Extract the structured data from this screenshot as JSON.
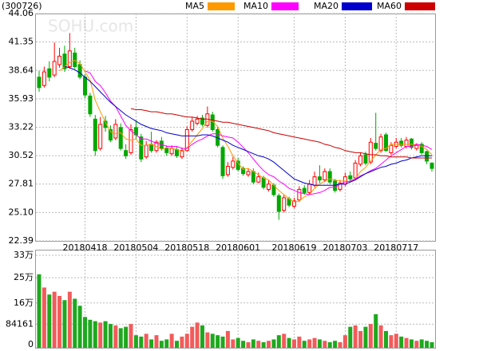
{
  "chart_data": {
    "type": "candlestick",
    "code": "(300726)",
    "watermark": "SOHU.com",
    "grid": true,
    "up_color": "#ff0000",
    "down_color": "#00a800",
    "categories": [
      null,
      null,
      null,
      null,
      null,
      null,
      null,
      null,
      null,
      "20180418",
      null,
      null,
      null,
      null,
      null,
      null,
      null,
      null,
      null,
      "20180504",
      null,
      null,
      null,
      null,
      null,
      null,
      null,
      null,
      null,
      "20180518",
      null,
      null,
      null,
      null,
      null,
      null,
      null,
      null,
      null,
      "20180601",
      null,
      null,
      null,
      null,
      null,
      null,
      null,
      null,
      null,
      null,
      "20180619",
      null,
      null,
      null,
      null,
      null,
      null,
      null,
      null,
      null,
      "20180703",
      null,
      null,
      null,
      null,
      null,
      null,
      null,
      null,
      null,
      "20180717",
      null,
      null,
      null,
      null,
      null,
      null,
      null
    ],
    "open": [
      38.0,
      37.2,
      38.8,
      38.2,
      39.2,
      40.2,
      39.0,
      40.3,
      39.2,
      38.0,
      36.2,
      34.0,
      31.2,
      33.8,
      33.0,
      32.2,
      33.2,
      31.0,
      30.8,
      33.2,
      32.3,
      30.4,
      31.6,
      31.0,
      31.9,
      31.2,
      30.7,
      31.1,
      30.4,
      31.0,
      33.0,
      33.6,
      34.1,
      33.4,
      34.4,
      33.0,
      31.3,
      28.7,
      29.4,
      30.0,
      29.3,
      28.7,
      29.0,
      28.0,
      28.4,
      27.3,
      27.7,
      26.7,
      25.3,
      26.4,
      25.7,
      26.3,
      27.4,
      27.0,
      27.7,
      28.5,
      28.2,
      29.0,
      28.1,
      27.3,
      27.8,
      28.6,
      28.4,
      29.7,
      30.6,
      29.9,
      31.7,
      31.0,
      32.5,
      30.8,
      31.4,
      31.9,
      31.4,
      32.1,
      31.2,
      31.6,
      30.9,
      29.8
    ],
    "high": [
      38.6,
      39.0,
      39.5,
      41.3,
      40.8,
      41.0,
      42.2,
      40.8,
      39.6,
      38.3,
      36.5,
      34.4,
      34.2,
      34.3,
      33.4,
      34.0,
      33.6,
      31.6,
      33.5,
      33.9,
      32.6,
      31.9,
      32.8,
      32.0,
      32.3,
      31.5,
      31.5,
      31.4,
      31.3,
      33.3,
      34.2,
      34.3,
      34.4,
      35.2,
      34.7,
      33.3,
      31.5,
      29.9,
      30.4,
      30.3,
      29.5,
      29.3,
      29.3,
      28.9,
      28.6,
      28.2,
      27.9,
      26.9,
      26.8,
      26.6,
      26.5,
      27.6,
      27.7,
      28.2,
      29.0,
      29.6,
      29.3,
      29.3,
      28.3,
      28.2,
      28.9,
      29.0,
      30.1,
      30.8,
      30.9,
      32.2,
      34.6,
      32.6,
      32.7,
      31.8,
      32.2,
      32.2,
      32.3,
      32.2,
      31.7,
      31.8,
      31.0,
      29.9
    ],
    "low": [
      36.6,
      37.0,
      37.6,
      38.0,
      38.9,
      38.5,
      38.8,
      38.8,
      37.8,
      36.0,
      34.2,
      30.5,
      31.0,
      32.8,
      31.8,
      32.0,
      31.0,
      30.2,
      30.6,
      32.1,
      29.9,
      30.2,
      30.8,
      30.8,
      31.0,
      30.5,
      30.5,
      30.3,
      30.2,
      30.9,
      32.8,
      33.4,
      33.3,
      33.2,
      32.8,
      31.3,
      28.3,
      28.5,
      29.2,
      29.0,
      28.6,
      28.5,
      27.8,
      27.9,
      27.3,
      27.1,
      26.6,
      24.4,
      25.1,
      25.6,
      25.5,
      26.1,
      26.8,
      26.8,
      27.5,
      27.9,
      28.0,
      27.8,
      27.0,
      27.1,
      27.6,
      28.1,
      28.2,
      29.5,
      29.6,
      29.7,
      31.0,
      30.8,
      30.9,
      30.6,
      31.2,
      31.3,
      31.2,
      31.1,
      31.0,
      30.6,
      29.7,
      29.0
    ],
    "close": [
      37.0,
      38.5,
      38.0,
      39.5,
      40.0,
      38.8,
      40.5,
      39.0,
      38.0,
      36.3,
      34.5,
      31.0,
      33.5,
      33.2,
      32.0,
      33.5,
      31.2,
      30.5,
      33.0,
      32.5,
      30.2,
      31.5,
      31.0,
      31.8,
      31.2,
      30.8,
      31.2,
      30.5,
      31.0,
      33.0,
      33.8,
      34.0,
      33.5,
      34.5,
      33.0,
      31.5,
      28.6,
      29.5,
      30.0,
      29.2,
      28.8,
      29.0,
      28.0,
      28.5,
      27.5,
      27.8,
      26.8,
      25.2,
      26.5,
      25.8,
      26.2,
      27.3,
      27.0,
      27.8,
      28.5,
      28.2,
      29.0,
      28.0,
      27.2,
      27.9,
      28.5,
      28.3,
      29.8,
      30.5,
      29.8,
      31.8,
      31.2,
      32.3,
      31.0,
      31.5,
      31.8,
      31.5,
      32.0,
      31.3,
      31.5,
      30.8,
      30.0,
      29.3
    ],
    "ylim": [
      22.39,
      44.06
    ],
    "yticks": [
      44.06,
      41.35,
      38.64,
      35.93,
      33.22,
      30.52,
      27.81,
      {
        "value": 25.1,
        "label": "25.10"
      },
      22.39
    ],
    "series": [
      {
        "name": "MA5",
        "color": "#ff9900",
        "values": [
          null,
          null,
          null,
          null,
          38.6,
          39.0,
          39.4,
          39.6,
          39.3,
          38.5,
          37.7,
          35.8,
          34.7,
          33.7,
          32.8,
          32.6,
          32.7,
          32.1,
          32.0,
          32.1,
          31.5,
          31.5,
          31.6,
          31.4,
          31.1,
          31.3,
          31.2,
          31.1,
          30.9,
          31.3,
          31.9,
          32.5,
          33.1,
          33.8,
          33.8,
          33.3,
          32.2,
          31.4,
          30.5,
          29.8,
          29.2,
          29.3,
          29.0,
          28.7,
          28.4,
          28.2,
          27.7,
          27.2,
          26.8,
          26.4,
          26.1,
          26.2,
          26.6,
          26.8,
          27.4,
          27.8,
          28.1,
          28.3,
          28.2,
          28.1,
          28.1,
          28.0,
          28.3,
          29.0,
          29.4,
          30.0,
          30.6,
          31.1,
          31.2,
          31.6,
          31.6,
          31.6,
          31.6,
          31.6,
          31.6,
          31.4,
          31.1,
          30.6
        ]
      },
      {
        "name": "MA10",
        "color": "#ff00ff",
        "values": [
          null,
          null,
          null,
          null,
          null,
          null,
          null,
          null,
          null,
          38.6,
          38.4,
          37.6,
          37.2,
          36.5,
          35.7,
          35.2,
          34.3,
          33.4,
          32.9,
          32.5,
          32.1,
          32.1,
          31.9,
          31.7,
          31.6,
          31.4,
          31.4,
          31.4,
          31.2,
          31.2,
          31.6,
          31.9,
          32.1,
          32.4,
          32.6,
          32.6,
          32.4,
          32.3,
          32.2,
          31.8,
          31.3,
          30.8,
          30.2,
          29.6,
          29.1,
          28.7,
          28.5,
          28.1,
          27.8,
          27.4,
          27.2,
          27.0,
          26.9,
          26.8,
          26.9,
          27.0,
          27.2,
          27.5,
          27.5,
          27.8,
          28.0,
          28.1,
          28.3,
          28.6,
          28.8,
          29.1,
          29.3,
          29.7,
          30.1,
          30.5,
          30.8,
          31.1,
          31.4,
          31.4,
          31.6,
          31.5,
          31.4,
          31.1
        ]
      },
      {
        "name": "MA20",
        "color": "#0000cc",
        "values": [
          null,
          null,
          null,
          null,
          null,
          39.0,
          38.9,
          38.7,
          38.4,
          38.0,
          37.6,
          37.1,
          36.6,
          36.1,
          35.6,
          35.2,
          34.8,
          34.4,
          34.1,
          33.8,
          33.5,
          33.3,
          33.1,
          33.0,
          32.9,
          32.7,
          32.6,
          32.5,
          32.4,
          32.4,
          32.4,
          32.4,
          32.5,
          32.5,
          32.4,
          32.2,
          32.0,
          31.8,
          31.5,
          31.3,
          31.1,
          30.9,
          30.7,
          30.5,
          30.4,
          30.2,
          29.9,
          29.5,
          29.1,
          28.7,
          28.3,
          28.1,
          27.9,
          27.8,
          27.7,
          27.7,
          27.7,
          27.7,
          27.7,
          27.8,
          27.8,
          28.0,
          28.2,
          28.5,
          28.8,
          29.0,
          29.2,
          29.4,
          29.5,
          29.7,
          29.8,
          30.0,
          30.1,
          30.3,
          30.4,
          30.5,
          30.5,
          30.5
        ]
      },
      {
        "name": "MA60",
        "color": "#cc0000",
        "values": [
          null,
          null,
          null,
          null,
          null,
          null,
          null,
          null,
          null,
          null,
          null,
          null,
          null,
          null,
          null,
          null,
          null,
          null,
          35.0,
          34.9,
          34.9,
          34.8,
          34.7,
          34.7,
          34.6,
          34.5,
          34.5,
          34.4,
          34.3,
          34.2,
          34.2,
          34.1,
          34.0,
          34.0,
          33.9,
          33.8,
          33.7,
          33.7,
          33.6,
          33.5,
          33.4,
          33.3,
          33.2,
          33.1,
          33.0,
          32.9,
          32.7,
          32.6,
          32.5,
          32.4,
          32.3,
          32.2,
          32.1,
          32.0,
          31.9,
          31.8,
          31.6,
          31.5,
          31.3,
          31.2,
          31.0,
          30.9,
          30.8,
          30.8,
          30.7,
          30.6,
          30.6,
          30.5,
          30.5,
          30.4,
          30.4,
          30.4,
          30.4,
          30.3,
          30.3,
          30.3,
          30.3,
          30.3
        ]
      }
    ],
    "volume": {
      "values": [
        262000,
        215000,
        190000,
        200000,
        185000,
        170000,
        200000,
        175000,
        150000,
        110000,
        100000,
        95000,
        90000,
        95000,
        85000,
        80000,
        70000,
        75000,
        85000,
        45000,
        40000,
        50000,
        30000,
        45000,
        25000,
        30000,
        50000,
        25000,
        40000,
        50000,
        75000,
        90000,
        80000,
        55000,
        50000,
        45000,
        40000,
        60000,
        30000,
        35000,
        25000,
        20000,
        30000,
        25000,
        20000,
        25000,
        30000,
        45000,
        50000,
        35000,
        30000,
        40000,
        25000,
        30000,
        35000,
        30000,
        25000,
        20000,
        25000,
        20000,
        45000,
        75000,
        80000,
        60000,
        75000,
        85000,
        120000,
        80000,
        60000,
        45000,
        50000,
        40000,
        35000,
        30000,
        25000,
        30000,
        25000,
        20000
      ],
      "ylim": [
        0,
        330000
      ],
      "yticks": [
        {
          "value": 330000,
          "label": "33万"
        },
        {
          "value": 250000,
          "label": "25万"
        },
        {
          "value": 160000,
          "label": "16万"
        },
        84161,
        0
      ]
    }
  }
}
